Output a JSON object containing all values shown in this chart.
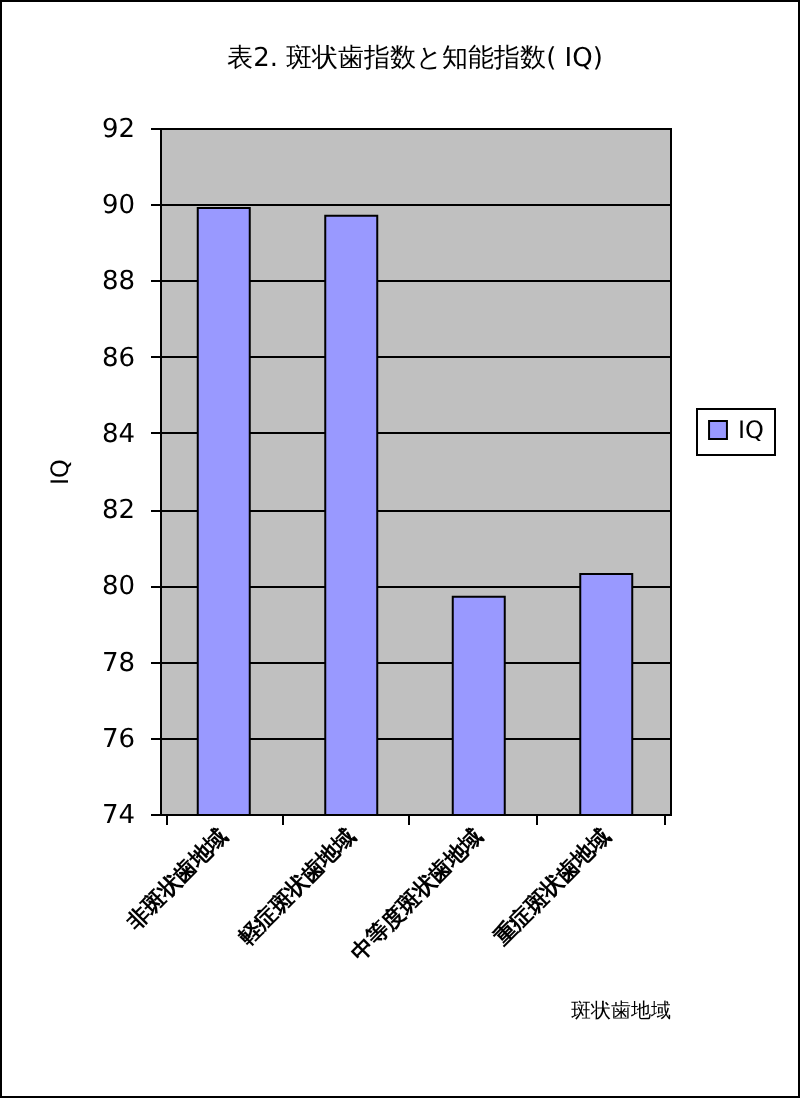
{
  "chart_data": {
    "type": "bar",
    "title": "表2.  斑状歯指数と知能指数( IQ)",
    "xlabel": "斑状歯地域",
    "ylabel": "IQ",
    "categories": [
      "非斑状歯地域",
      "軽症斑状歯地域",
      "中等度斑状歯地域",
      "重症斑状歯地域"
    ],
    "series": [
      {
        "name": "IQ",
        "color": "#9999ff",
        "values": [
          89.9,
          89.7,
          79.7,
          80.3
        ]
      }
    ],
    "ylim": [
      74,
      92
    ],
    "yticks": [
      74,
      76,
      78,
      80,
      82,
      84,
      86,
      88,
      90,
      92
    ],
    "grid": "y",
    "legend": "right"
  }
}
